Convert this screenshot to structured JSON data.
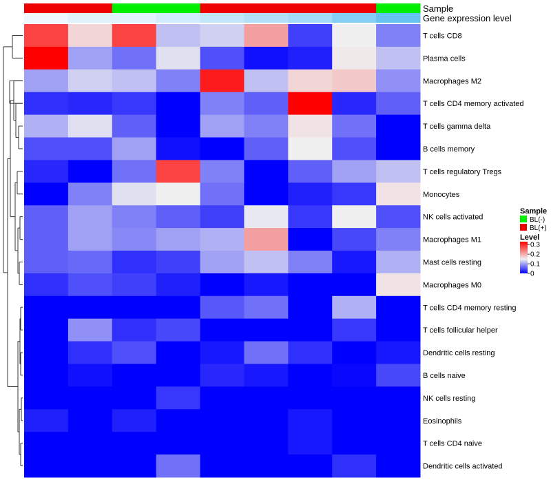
{
  "chart_data": {
    "type": "heatmap",
    "annotations": {
      "sample_label": "Sample",
      "expression_label": "Gene expression level",
      "sample_groups": [
        "BL(+)",
        "BL(+)",
        "BL(-)",
        "BL(-)",
        "BL(+)",
        "BL(+)",
        "BL(+)",
        "BL(+)",
        "BL(-)"
      ],
      "expression_levels": [
        0.02,
        0.03,
        0.03,
        0.04,
        0.05,
        0.06,
        0.07,
        0.09,
        0.11
      ]
    },
    "rows": [
      "T cells CD8",
      "Plasma cells",
      "Macrophages M2",
      "T cells CD4 memory activated",
      "T cells gamma delta",
      "B cells memory",
      "T cells regulatory  Tregs",
      "Monocytes",
      "NK cells activated",
      "Macrophages M1",
      "Mast cells resting",
      "Macrophages M0",
      "T cells CD4 memory resting",
      "T cells follicular helper",
      "Dendritic cells resting",
      "B cells naive",
      "NK cells resting",
      "Eosinophils",
      "T cells CD4 naive",
      "Dendritic cells activated"
    ],
    "values": [
      [
        0.28,
        0.17,
        0.28,
        0.12,
        0.13,
        0.21,
        0.04,
        0.15,
        0.08
      ],
      [
        0.33,
        0.1,
        0.07,
        0.14,
        0.05,
        0.01,
        0.02,
        0.155,
        0.12
      ],
      [
        0.1,
        0.13,
        0.12,
        0.08,
        0.31,
        0.12,
        0.17,
        0.18,
        0.09
      ],
      [
        0.03,
        0.025,
        0.035,
        0.0,
        0.08,
        0.06,
        0.33,
        0.025,
        0.06
      ],
      [
        0.11,
        0.14,
        0.06,
        0.0,
        0.1,
        0.08,
        0.16,
        0.07,
        0.0
      ],
      [
        0.05,
        0.05,
        0.1,
        0.01,
        0.0,
        0.06,
        0.15,
        0.05,
        0.0
      ],
      [
        0.025,
        0.0,
        0.07,
        0.28,
        0.08,
        0.0,
        0.06,
        0.1,
        0.12
      ],
      [
        0.0,
        0.08,
        0.14,
        0.15,
        0.07,
        0.0,
        0.02,
        0.035,
        0.16
      ],
      [
        0.06,
        0.1,
        0.08,
        0.06,
        0.04,
        0.145,
        0.035,
        0.15,
        0.05
      ],
      [
        0.06,
        0.1,
        0.085,
        0.1,
        0.11,
        0.21,
        0.0,
        0.045,
        0.08
      ],
      [
        0.06,
        0.065,
        0.03,
        0.04,
        0.1,
        0.12,
        0.08,
        0.015,
        0.11
      ],
      [
        0.03,
        0.05,
        0.04,
        0.02,
        0.0,
        0.015,
        0.0,
        0.0,
        0.16
      ],
      [
        0.0,
        0.0,
        0.0,
        0.0,
        0.055,
        0.07,
        0.0,
        0.11,
        0.0
      ],
      [
        0.0,
        0.09,
        0.03,
        0.045,
        0.0,
        0.0,
        0.0,
        0.035,
        0.0
      ],
      [
        0.0,
        0.03,
        0.05,
        0.0,
        0.015,
        0.07,
        0.03,
        0.0,
        0.015
      ],
      [
        0.0,
        0.01,
        0.0,
        0.0,
        0.025,
        0.015,
        0.0,
        0.005,
        0.045
      ],
      [
        0.0,
        0.0,
        0.0,
        0.035,
        0.0,
        0.0,
        0.0,
        0.0,
        0.0
      ],
      [
        0.02,
        0.0,
        0.02,
        0.0,
        0.0,
        0.0,
        0.015,
        0.0,
        0.0
      ],
      [
        0.0,
        0.0,
        0.0,
        0.0,
        0.0,
        0.0,
        0.015,
        0.0,
        0.0
      ],
      [
        0.0,
        0.0,
        0.0,
        0.07,
        0.0,
        0.0,
        0.0,
        0.03,
        0.0
      ]
    ],
    "colorscale": {
      "low_color": "#0000ff",
      "mid_color": "#f0f0f0",
      "high_color": "#ff0000",
      "min": 0,
      "mid": 0.15,
      "max": 0.33
    },
    "expression_colorscale": {
      "low_color": "#f0f8ff",
      "high_color": "#66c2f0",
      "min": 0.02,
      "max": 0.11
    },
    "legend": {
      "sample_title": "Sample",
      "sample_items": [
        {
          "label": "BL(-)",
          "color": "#00ee00"
        },
        {
          "label": "BL(+)",
          "color": "#ee0000"
        }
      ],
      "level_title": "Level",
      "level_ticks": [
        {
          "label": "0.3",
          "value": 0.3
        },
        {
          "label": "0.2",
          "value": 0.2
        },
        {
          "label": "0.1",
          "value": 0.1
        },
        {
          "label": "0",
          "value": 0.0
        }
      ]
    }
  }
}
